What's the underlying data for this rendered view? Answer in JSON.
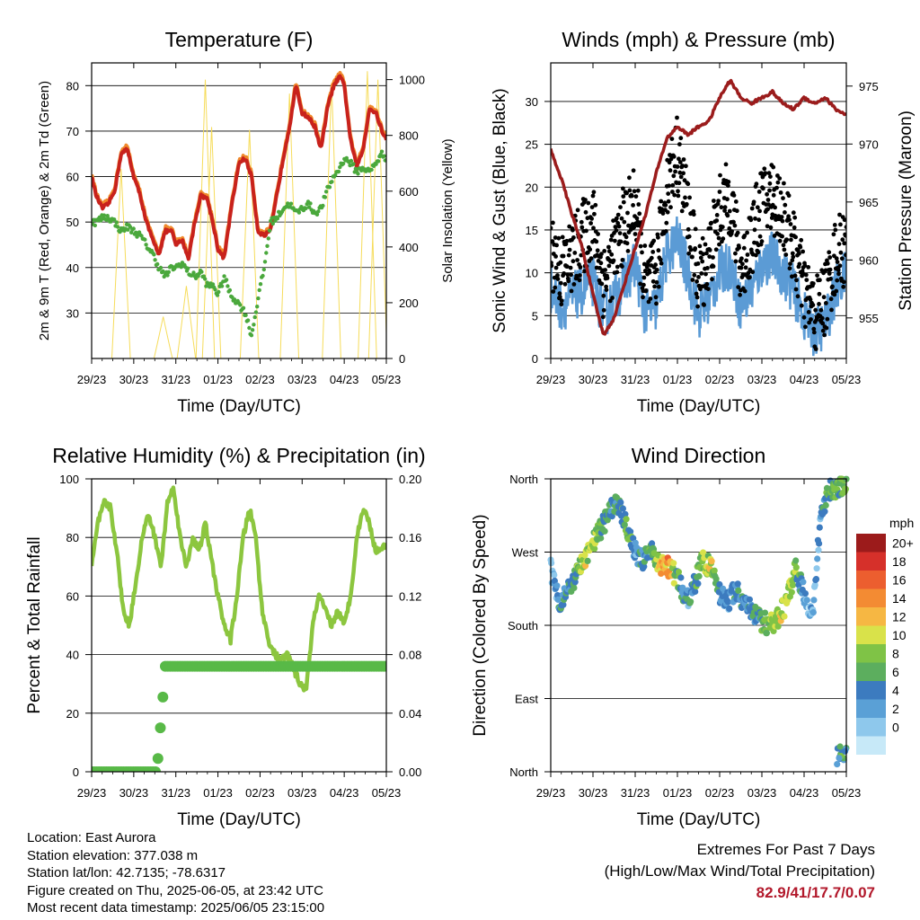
{
  "colors": {
    "temp2m": "#e8382a",
    "temp9m": "#f08a2c",
    "temp_main": "#c8221c",
    "dewpoint": "#4aa83c",
    "solar": "#f6dc5a",
    "wind": "#5b9bd5",
    "gust": "#000000",
    "pressure": "#9b1c1c",
    "rh": "#8cc63f",
    "precip": "#58b947",
    "speed_scale": [
      "#c7e9f8",
      "#8ec8ec",
      "#5aa0d6",
      "#3c7bbf",
      "#5cae5e",
      "#7fc346",
      "#d9e24a",
      "#f6b743",
      "#f38b33",
      "#ec5e2f",
      "#d6302a",
      "#9c1b1b"
    ]
  },
  "chart_data": [
    {
      "id": "temperature",
      "type": "line",
      "title": "Temperature (F)",
      "xlabel": "Time (Day/UTC)",
      "ylabel": "2m & 9m T (Red, Orange) & 2m Td (Green)",
      "ylabel_right": "Solar Insolation (Yellow)",
      "xticks": [
        "29/23",
        "30/23",
        "31/23",
        "01/23",
        "02/23",
        "03/23",
        "04/23",
        "05/23"
      ],
      "ylim": [
        20,
        85
      ],
      "yticks": [
        30,
        40,
        50,
        60,
        70,
        80
      ],
      "ylim_right": [
        0,
        1060
      ],
      "yticks_right": [
        0,
        200,
        400,
        600,
        800,
        1000
      ],
      "x": [
        0,
        0.1,
        0.25,
        0.4,
        0.55,
        0.7,
        0.85,
        1.0,
        1.15,
        1.3,
        1.45,
        1.6,
        1.75,
        1.9,
        2.0,
        2.15,
        2.3,
        2.45,
        2.6,
        2.75,
        2.9,
        3.0,
        3.15,
        3.3,
        3.5,
        3.65,
        3.8,
        3.95,
        4.1,
        4.25,
        4.4,
        4.55,
        4.7,
        4.85,
        5.0,
        5.15,
        5.3,
        5.45,
        5.6,
        5.75,
        5.9,
        6.0,
        6.15,
        6.3,
        6.45,
        6.6,
        6.75,
        6.9,
        7.0
      ],
      "series": [
        {
          "name": "2m T",
          "values": [
            60,
            56,
            53,
            54,
            57,
            65,
            66,
            60,
            56,
            50,
            46,
            43,
            48,
            48,
            45,
            46,
            42,
            50,
            56,
            55,
            49,
            44,
            42,
            52,
            63,
            64,
            60,
            48,
            47,
            48,
            56,
            64,
            71,
            80,
            74,
            73,
            71,
            66,
            75,
            80,
            82,
            80,
            68,
            62,
            66,
            75,
            74,
            70,
            68
          ]
        },
        {
          "name": "Td",
          "values": [
            50,
            50,
            51,
            51,
            50,
            48,
            49,
            48,
            47,
            45,
            43,
            40,
            38,
            40,
            40,
            41,
            39,
            38,
            39,
            36,
            36,
            34,
            38,
            34,
            32,
            30,
            25,
            33,
            40,
            50,
            51,
            53,
            54,
            52,
            53,
            54,
            52,
            53,
            57,
            60,
            62,
            64,
            63,
            61,
            62,
            61,
            63,
            65,
            64
          ]
        }
      ],
      "solar_peaks": [
        {
          "x": 0.7,
          "value": 680
        },
        {
          "x": 1.7,
          "value": 150
        },
        {
          "x": 2.25,
          "value": 260
        },
        {
          "x": 2.7,
          "value": 1000
        },
        {
          "x": 2.85,
          "value": 830
        },
        {
          "x": 3.75,
          "value": 820
        },
        {
          "x": 4.7,
          "value": 950
        },
        {
          "x": 5.7,
          "value": 990
        },
        {
          "x": 6.55,
          "value": 1030
        },
        {
          "x": 6.8,
          "value": 1000
        }
      ]
    },
    {
      "id": "winds",
      "type": "line",
      "title": "Winds (mph) & Pressure (mb)",
      "xlabel": "Time (Day/UTC)",
      "ylabel": "Sonic Wind & Gust (Blue, Black)",
      "ylabel_right": "Station Pressure (Maroon)",
      "xticks": [
        "29/23",
        "30/23",
        "31/23",
        "01/23",
        "02/23",
        "03/23",
        "04/23",
        "05/23"
      ],
      "ylim": [
        0,
        34.5
      ],
      "yticks": [
        0,
        5,
        10,
        15,
        20,
        25,
        30
      ],
      "ylim_right": [
        951.5,
        977
      ],
      "yticks_right": [
        955,
        960,
        965,
        970,
        975
      ],
      "x": [
        0,
        0.25,
        0.5,
        0.75,
        1.0,
        1.25,
        1.5,
        1.75,
        2.0,
        2.25,
        2.5,
        2.75,
        3.0,
        3.25,
        3.5,
        3.75,
        4.0,
        4.25,
        4.5,
        4.75,
        5.0,
        5.25,
        5.5,
        5.75,
        6.0,
        6.25,
        6.5,
        6.75,
        7.0
      ],
      "series": [
        {
          "name": "Wind",
          "values": [
            8,
            6,
            7,
            8,
            9,
            5,
            7,
            9,
            11,
            5,
            6,
            12,
            14,
            10,
            5,
            7,
            10,
            11,
            6,
            8,
            11,
            12,
            10,
            8,
            5,
            3,
            4,
            8,
            10
          ]
        },
        {
          "name": "Gust",
          "values": [
            13,
            10,
            12,
            14,
            16,
            9,
            12,
            16,
            18,
            8,
            10,
            20,
            24,
            17,
            9,
            12,
            17,
            19,
            10,
            14,
            18,
            19,
            17,
            13,
            8,
            5,
            7,
            12,
            13
          ]
        },
        {
          "name": "Pressure",
          "values": [
            969.5,
            967,
            964,
            961,
            957,
            953.5,
            955,
            958,
            961,
            964,
            967.5,
            970.5,
            971.5,
            970.8,
            971.5,
            972,
            974,
            975.5,
            974,
            973.5,
            974,
            974.5,
            973.5,
            973,
            974,
            973.5,
            974,
            973,
            972.5
          ]
        }
      ]
    },
    {
      "id": "humidity",
      "type": "line",
      "title": "Relative Humidity (%) & Precipitation (in)",
      "xlabel": "Time (Day/UTC)",
      "ylabel": "Percent & Total Rainfall",
      "xticks": [
        "29/23",
        "30/23",
        "31/23",
        "01/23",
        "02/23",
        "03/23",
        "04/23",
        "05/23"
      ],
      "ylim": [
        0,
        100
      ],
      "yticks": [
        0,
        20,
        40,
        60,
        80,
        100
      ],
      "ylim_right": [
        0,
        0.2
      ],
      "yticks_right": [
        "0.00",
        "0.04",
        "0.08",
        "0.12",
        "0.16",
        "0.20"
      ],
      "x": [
        0,
        0.15,
        0.3,
        0.45,
        0.6,
        0.75,
        0.9,
        1.05,
        1.2,
        1.35,
        1.5,
        1.65,
        1.8,
        1.95,
        2.1,
        2.25,
        2.4,
        2.55,
        2.7,
        2.85,
        3.0,
        3.15,
        3.3,
        3.45,
        3.6,
        3.75,
        3.9,
        4.05,
        4.2,
        4.35,
        4.5,
        4.65,
        4.8,
        4.95,
        5.1,
        5.25,
        5.4,
        5.55,
        5.7,
        5.85,
        6.0,
        6.15,
        6.3,
        6.45,
        6.6,
        6.75,
        7.0
      ],
      "series": [
        {
          "name": "RH",
          "values": [
            70,
            85,
            92,
            90,
            75,
            55,
            50,
            65,
            80,
            88,
            80,
            70,
            92,
            97,
            80,
            70,
            80,
            75,
            85,
            72,
            60,
            50,
            45,
            60,
            80,
            90,
            80,
            55,
            45,
            40,
            38,
            40,
            35,
            30,
            28,
            50,
            60,
            55,
            50,
            55,
            50,
            60,
            80,
            90,
            85,
            75,
            78
          ]
        },
        {
          "name": "Precip",
          "values": [
            0,
            0,
            0,
            0,
            0,
            0,
            0,
            0,
            0,
            0,
            0,
            0,
            0.005,
            0.07,
            0.072,
            0.072,
            0.072,
            0.072,
            0.072,
            0.072,
            0.072,
            0.072,
            0.072,
            0.072,
            0.072,
            0.072,
            0.072,
            0.072,
            0.072,
            0.072,
            0.072,
            0.072,
            0.072,
            0.072,
            0.072,
            0.072,
            0.072,
            0.072,
            0.072,
            0.072,
            0.072,
            0.072,
            0.072,
            0.072,
            0.072,
            0.072,
            0.072
          ]
        }
      ]
    },
    {
      "id": "direction",
      "type": "scatter",
      "title": "Wind Direction",
      "xlabel": "Time (Day/UTC)",
      "ylabel": "Direction (Colored By Speed)",
      "xticks": [
        "29/23",
        "30/23",
        "31/23",
        "01/23",
        "02/23",
        "03/23",
        "04/23",
        "05/23"
      ],
      "ylim": [
        0,
        360
      ],
      "ytick_labels": [
        "North",
        "East",
        "South",
        "West",
        "North"
      ],
      "legend": {
        "title": "mph",
        "labels": [
          "20+",
          "18",
          "16",
          "14",
          "12",
          "10",
          "8",
          "6",
          "4",
          "2",
          "0"
        ],
        "placement": "right"
      },
      "x": [
        0,
        0.2,
        0.4,
        0.6,
        0.8,
        1.0,
        1.2,
        1.4,
        1.6,
        1.8,
        2.0,
        2.2,
        2.4,
        2.6,
        2.8,
        3.0,
        3.2,
        3.4,
        3.6,
        3.8,
        4.0,
        4.2,
        4.4,
        4.6,
        4.8,
        5.0,
        5.2,
        5.4,
        5.6,
        5.8,
        6.0,
        6.2,
        6.4,
        6.6,
        6.8,
        7.0
      ],
      "series": [
        {
          "name": "Direction",
          "values": [
            250,
            210,
            220,
            240,
            260,
            280,
            300,
            320,
            330,
            300,
            270,
            260,
            270,
            255,
            250,
            240,
            210,
            230,
            260,
            250,
            220,
            210,
            225,
            205,
            195,
            185,
            180,
            190,
            210,
            250,
            220,
            190,
            320,
            345,
            350,
            355
          ]
        },
        {
          "name": "Speed",
          "values": [
            4,
            5,
            6,
            8,
            12,
            10,
            8,
            6,
            7,
            9,
            5,
            6,
            8,
            14,
            15,
            8,
            5,
            6,
            10,
            12,
            5,
            4,
            6,
            5,
            6,
            7,
            10,
            12,
            11,
            9,
            4,
            3,
            5,
            8,
            9,
            10
          ]
        }
      ]
    }
  ],
  "info": {
    "location": "Location: East Aurora",
    "elevation": "Station elevation: 377.038 m",
    "latlon": "Station lat/lon: 42.7135; -78.6317",
    "created": "Figure created on Thu, 2025-06-05, at 23:42 UTC",
    "recent": "Most recent data timestamp: 2025/06/05 23:15:00"
  },
  "extremes": {
    "heading": "Extremes For Past 7 Days",
    "subheading": "(High/Low/Max Wind/Total Precipitation)",
    "values": "82.9/41/17.7/0.07"
  }
}
